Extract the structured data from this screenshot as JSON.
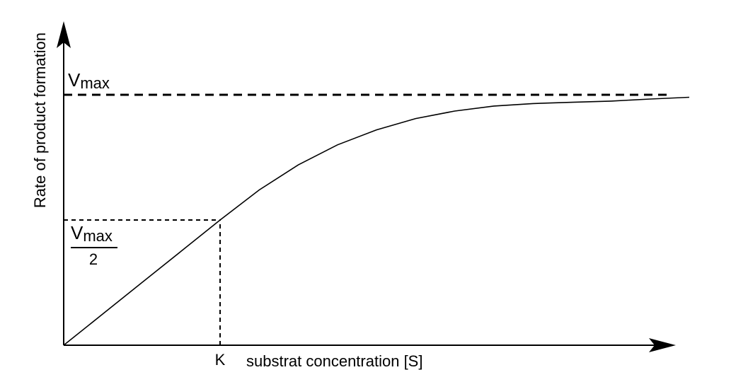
{
  "chart_data": {
    "type": "line",
    "title": "",
    "xlabel": "substrat concentration [S]",
    "ylabel": "Rate of product formation",
    "annotations": {
      "vmax_base": "V",
      "vmax_sub": "max",
      "half_numerator_base": "V",
      "half_numerator_sub": "max",
      "half_denominator": "2",
      "k_label": "K"
    },
    "reference_lines": {
      "vmax_line": {
        "y": 1.0,
        "style": "dashed"
      },
      "half_vmax_line": {
        "y": 0.5,
        "x_end": 1.0,
        "style": "dashed"
      },
      "k_line": {
        "x": 1.0,
        "y_end": 0.5,
        "style": "dashed"
      }
    },
    "series": [
      {
        "x": [
          0,
          0.25,
          0.5,
          0.75,
          1.0,
          1.25,
          1.5,
          1.75,
          2.0,
          2.25,
          2.5,
          2.75,
          3.0,
          3.25,
          3.5,
          3.75,
          4.0
        ],
        "values": [
          0,
          0.125,
          0.25,
          0.375,
          0.5,
          0.62,
          0.72,
          0.8,
          0.86,
          0.905,
          0.935,
          0.955,
          0.965,
          0.97,
          0.975,
          0.983,
          0.99
        ]
      }
    ],
    "xlim": [
      0,
      4.0
    ],
    "ylim": [
      0,
      1.0
    ],
    "grid": false,
    "legend": "none"
  }
}
